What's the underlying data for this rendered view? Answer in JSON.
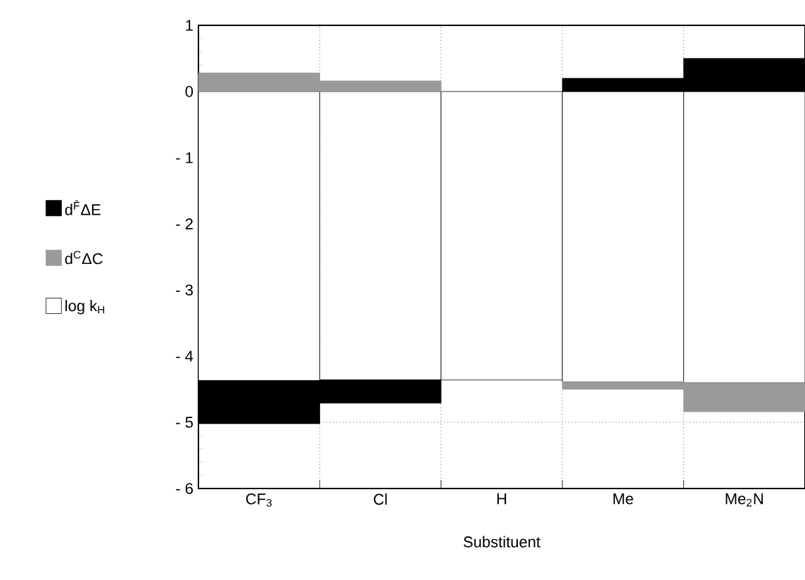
{
  "chart_data": {
    "type": "bar",
    "xlabel": "Substituent",
    "categories": [
      "CF$_{3}$",
      "Cl",
      "H",
      "Me",
      "Me$_{2}$N"
    ],
    "series": [
      {
        "name": "d$^{F̄}$ΔE",
        "color": "#000000",
        "base": [
          -4.37,
          -4.36,
          null,
          0,
          0
        ],
        "values": [
          -0.65,
          -0.35,
          null,
          0.2,
          0.5
        ]
      },
      {
        "name": "d$^{C}$ΔC",
        "color": "#9a9a9a",
        "base": [
          0,
          0,
          null,
          -4.39,
          -4.4
        ],
        "values": [
          0.28,
          0.16,
          null,
          -0.11,
          -0.44
        ]
      },
      {
        "name": "log k$_{H}$",
        "color": "#ffffff",
        "base": [
          0,
          0,
          0,
          0,
          0
        ],
        "values": [
          -4.37,
          -4.36,
          -4.36,
          -4.39,
          -4.4
        ]
      }
    ],
    "ylim": [
      -6,
      1
    ],
    "yticks": [
      1,
      0,
      {
        "value": -1,
        "label": "- 1"
      },
      {
        "value": -2,
        "label": "- 2"
      },
      {
        "value": -3,
        "label": "- 3"
      },
      {
        "value": -4,
        "label": "- 4"
      },
      {
        "value": -5,
        "label": "- 5"
      },
      {
        "value": -6,
        "label": "- 6"
      }
    ],
    "grid": "x",
    "legend": "left",
    "ref_lines": [
      {
        "axis": "y",
        "value": -5,
        "line_style": "dotted"
      }
    ]
  }
}
